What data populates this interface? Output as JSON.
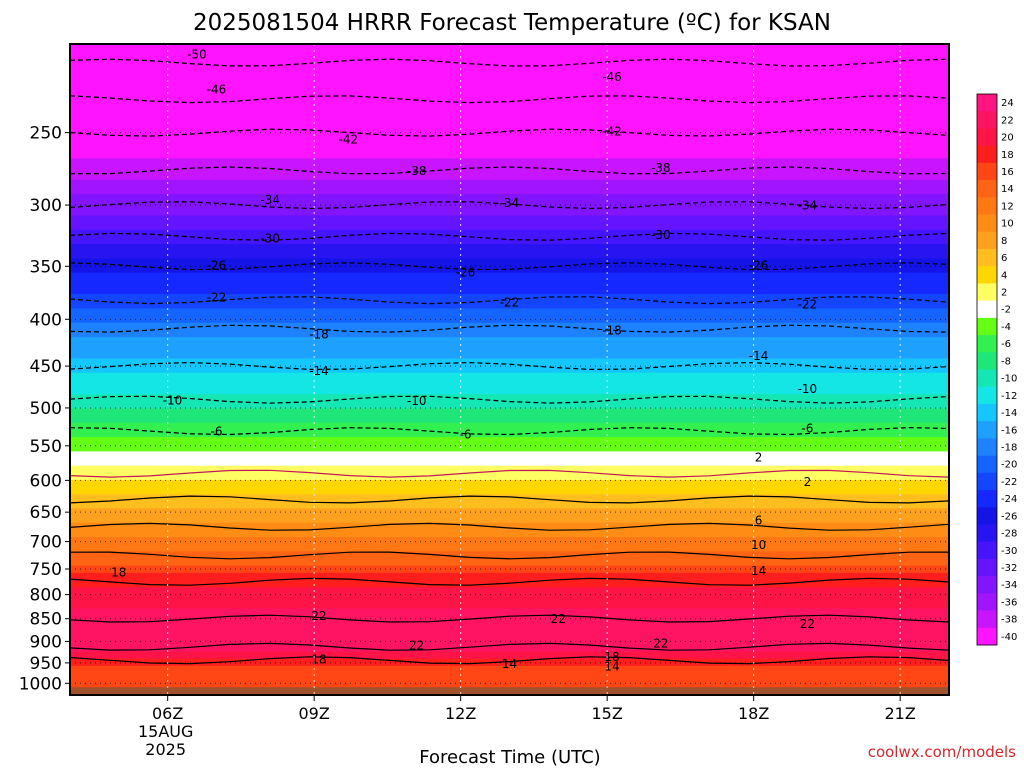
{
  "chart_data": {
    "type": "heatmap",
    "title": "2025081504 HRRR Forecast Temperature (ºC) for KSAN",
    "xlabel": "Forecast Time (UTC)",
    "x_ticks": [
      {
        "label": "06Z",
        "hour": 6,
        "sub": [
          "15AUG",
          "2025"
        ]
      },
      {
        "label": "09Z",
        "hour": 9
      },
      {
        "label": "12Z",
        "hour": 12
      },
      {
        "label": "15Z",
        "hour": 15
      },
      {
        "label": "18Z",
        "hour": 18
      },
      {
        "label": "21Z",
        "hour": 21
      }
    ],
    "xlim": [
      4,
      22
    ],
    "y_scale": "log",
    "y_reversed": true,
    "ylim": [
      1030,
      200
    ],
    "y_ticks": [
      250,
      300,
      350,
      400,
      450,
      500,
      550,
      600,
      650,
      700,
      750,
      800,
      850,
      900,
      950,
      1000
    ],
    "profile": [
      {
        "p": 200,
        "t": -52
      },
      {
        "p": 225,
        "t": -47
      },
      {
        "p": 250,
        "t": -42
      },
      {
        "p": 275,
        "t": -38
      },
      {
        "p": 300,
        "t": -34
      },
      {
        "p": 325,
        "t": -30
      },
      {
        "p": 350,
        "t": -26
      },
      {
        "p": 375,
        "t": -23
      },
      {
        "p": 400,
        "t": -19
      },
      {
        "p": 450,
        "t": -14
      },
      {
        "p": 500,
        "t": -9
      },
      {
        "p": 530,
        "t": -6
      },
      {
        "p": 555,
        "t": -3
      },
      {
        "p": 580,
        "t": 1
      },
      {
        "p": 610,
        "t": 4
      },
      {
        "p": 650,
        "t": 8
      },
      {
        "p": 700,
        "t": 12
      },
      {
        "p": 750,
        "t": 16
      },
      {
        "p": 800,
        "t": 20
      },
      {
        "p": 850,
        "t": 22
      },
      {
        "p": 900,
        "t": 23
      },
      {
        "p": 925,
        "t": 21
      },
      {
        "p": 950,
        "t": 17
      },
      {
        "p": 975,
        "t": 16
      },
      {
        "p": 1000,
        "t": 15
      },
      {
        "p": 1010,
        "t": 15
      }
    ],
    "surface_pressure": 1010,
    "contour_labels": [
      {
        "text": "-50",
        "x": 6.6,
        "p": 205
      },
      {
        "text": "-46",
        "x": 7.0,
        "p": 224
      },
      {
        "text": "-46",
        "x": 15.1,
        "p": 217
      },
      {
        "text": "-42",
        "x": 9.7,
        "p": 254
      },
      {
        "text": "-42",
        "x": 15.1,
        "p": 249
      },
      {
        "text": "-38",
        "x": 11.1,
        "p": 275
      },
      {
        "text": "-38",
        "x": 16.1,
        "p": 273
      },
      {
        "text": "-34",
        "x": 8.1,
        "p": 296
      },
      {
        "text": "-34",
        "x": 13.0,
        "p": 298
      },
      {
        "text": "-34",
        "x": 19.1,
        "p": 300
      },
      {
        "text": "-30",
        "x": 8.1,
        "p": 326
      },
      {
        "text": "-30",
        "x": 16.1,
        "p": 323
      },
      {
        "text": "-26",
        "x": 7.0,
        "p": 349
      },
      {
        "text": "-26",
        "x": 12.1,
        "p": 355
      },
      {
        "text": "-26",
        "x": 18.1,
        "p": 349
      },
      {
        "text": "-22",
        "x": 7.0,
        "p": 378
      },
      {
        "text": "-22",
        "x": 13.0,
        "p": 383
      },
      {
        "text": "-22",
        "x": 19.1,
        "p": 385
      },
      {
        "text": "-18",
        "x": 9.1,
        "p": 415
      },
      {
        "text": "-18",
        "x": 15.1,
        "p": 411
      },
      {
        "text": "-14",
        "x": 9.1,
        "p": 455
      },
      {
        "text": "-14",
        "x": 18.1,
        "p": 438
      },
      {
        "text": "-10",
        "x": 6.1,
        "p": 490
      },
      {
        "text": "-10",
        "x": 11.1,
        "p": 491
      },
      {
        "text": "-10",
        "x": 19.1,
        "p": 476
      },
      {
        "text": "-6",
        "x": 7.0,
        "p": 530
      },
      {
        "text": "-6",
        "x": 12.1,
        "p": 534
      },
      {
        "text": "-6",
        "x": 19.1,
        "p": 526
      },
      {
        "text": "2",
        "x": 18.1,
        "p": 566
      },
      {
        "text": "2",
        "x": 19.1,
        "p": 602
      },
      {
        "text": "6",
        "x": 18.1,
        "p": 663
      },
      {
        "text": "10",
        "x": 18.1,
        "p": 705
      },
      {
        "text": "14",
        "x": 18.1,
        "p": 753
      },
      {
        "text": "18",
        "x": 5.0,
        "p": 756
      },
      {
        "text": "22",
        "x": 9.1,
        "p": 843
      },
      {
        "text": "22",
        "x": 14.0,
        "p": 850
      },
      {
        "text": "22",
        "x": 19.1,
        "p": 860
      },
      {
        "text": "22",
        "x": 11.1,
        "p": 908
      },
      {
        "text": "22",
        "x": 16.1,
        "p": 904
      },
      {
        "text": "18",
        "x": 9.1,
        "p": 941
      },
      {
        "text": "18",
        "x": 15.1,
        "p": 935
      },
      {
        "text": "14",
        "x": 13.0,
        "p": 952
      },
      {
        "text": "14",
        "x": 15.1,
        "p": 957
      }
    ],
    "colorbar": {
      "labels": [
        "24",
        "22",
        "20",
        "18",
        "16",
        "14",
        "12",
        "10",
        "8",
        "6",
        "4",
        "2",
        "-2",
        "-4",
        "-6",
        "-8",
        "-10",
        "-12",
        "-14",
        "-16",
        "-18",
        "-20",
        "-22",
        "-24",
        "-26",
        "-28",
        "-30",
        "-32",
        "-34",
        "-36",
        "-38",
        "-40"
      ],
      "colors": [
        "#ff1480",
        "#ff1464",
        "#ff1448",
        "#ff1e1e",
        "#ff4614",
        "#ff6414",
        "#ff7814",
        "#ff8c14",
        "#ffa01e",
        "#ffbe1e",
        "#ffd700",
        "#ffff64",
        "#ffffff",
        "#64ff14",
        "#32f050",
        "#1ee678",
        "#14e6b4",
        "#14e6e6",
        "#14c8ff",
        "#1ea0ff",
        "#1e82ff",
        "#1464ff",
        "#1446ff",
        "#1428ff",
        "#1414e6",
        "#2814f0",
        "#4614ff",
        "#6414ff",
        "#8214ff",
        "#a014ff",
        "#c814ff",
        "#ff14ff"
      ]
    }
  },
  "credit": "coolwx.com/models"
}
